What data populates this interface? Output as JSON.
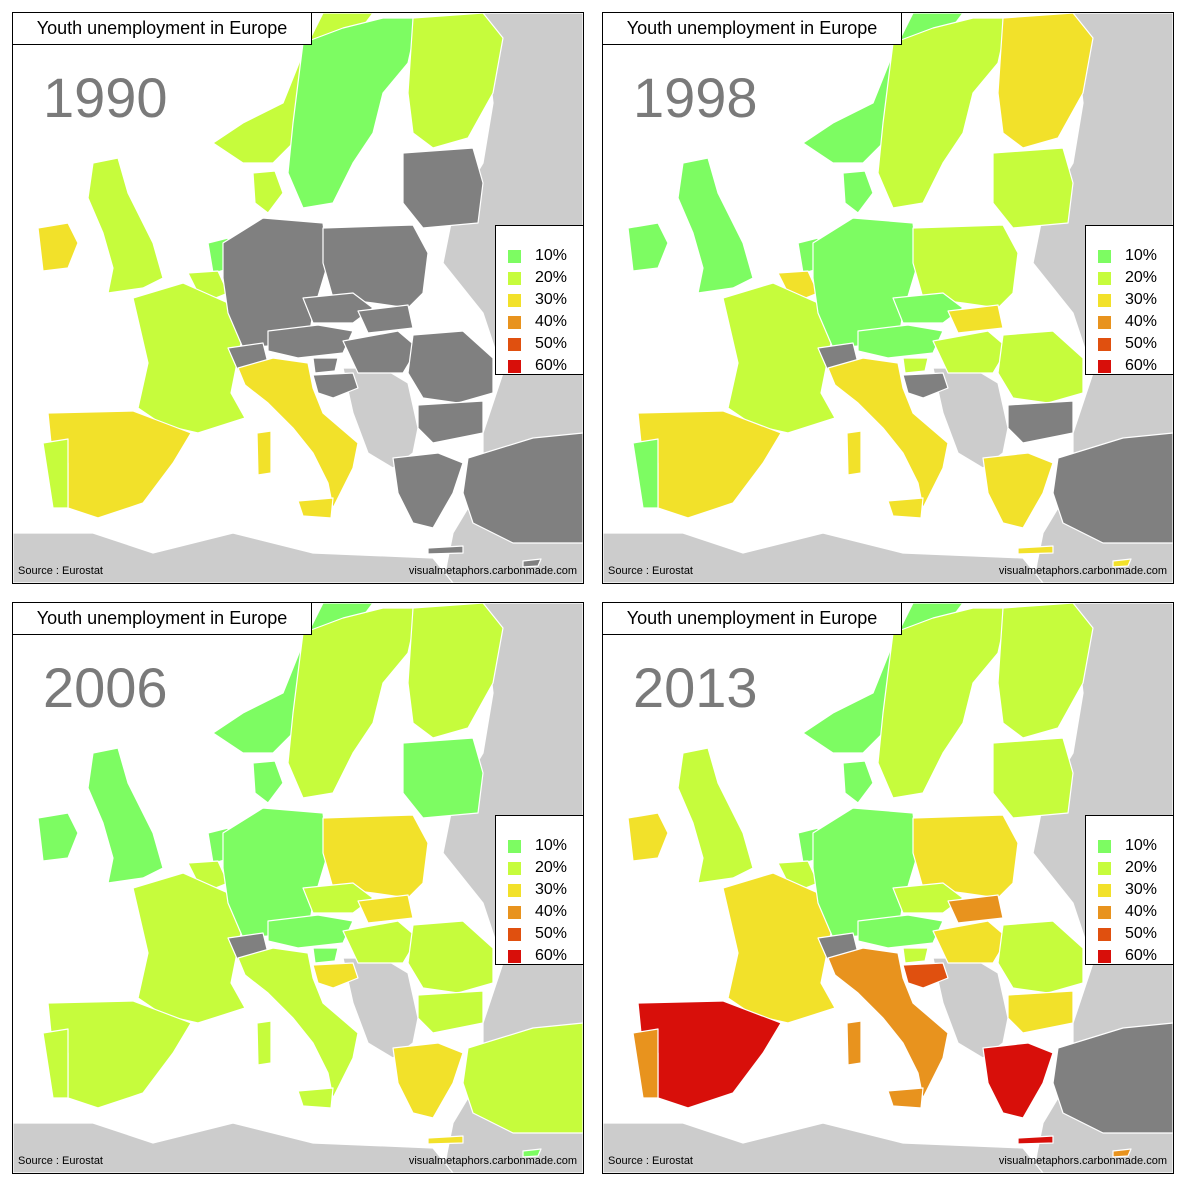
{
  "title": "Youth unemployment in Europe",
  "source": "Source : Eurostat",
  "credit": "visualmetaphors.carbonmade.com",
  "legend": [
    {
      "label": "10%",
      "color": "#7dfc62"
    },
    {
      "label": "20%",
      "color": "#c6fc3c"
    },
    {
      "label": "30%",
      "color": "#f2e12a"
    },
    {
      "label": "40%",
      "color": "#e8931e"
    },
    {
      "label": "50%",
      "color": "#e0500f"
    },
    {
      "label": "60%",
      "color": "#d80f0a"
    }
  ],
  "colors": {
    "nodata": "#808080",
    "non_eu": "#cccccc",
    "sea": "#ffffff",
    "border": "#ffffff"
  },
  "panels": [
    {
      "year": "1990",
      "values": {
        "iceland": "nodata",
        "norway": "20%",
        "sweden": "10%",
        "finland": "20%",
        "ireland": "30%",
        "uk": "20%",
        "denmark": "20%",
        "netherlands": "10%",
        "belgium": "20%",
        "france": "20%",
        "spain": "30%",
        "portugal": "20%",
        "germany": "nodata",
        "poland": "nodata",
        "czech": "nodata",
        "slovakia": "nodata",
        "austria": "nodata",
        "switzerland": "nodata",
        "italy": "30%",
        "hungary": "nodata",
        "slovenia": "nodata",
        "croatia": "nodata",
        "romania": "nodata",
        "bulgaria": "nodata",
        "greece": "nodata",
        "baltics": "nodata",
        "turkey": "nodata",
        "cyprus": "nodata"
      }
    },
    {
      "year": "1998",
      "values": {
        "iceland": "nodata",
        "norway": "10%",
        "sweden": "20%",
        "finland": "30%",
        "ireland": "10%",
        "uk": "10%",
        "denmark": "10%",
        "netherlands": "10%",
        "belgium": "30%",
        "france": "20%",
        "spain": "30%",
        "portugal": "10%",
        "germany": "10%",
        "poland": "20%",
        "czech": "10%",
        "slovakia": "30%",
        "austria": "10%",
        "switzerland": "nodata",
        "italy": "30%",
        "hungary": "20%",
        "slovenia": "20%",
        "croatia": "nodata",
        "romania": "20%",
        "bulgaria": "nodata",
        "greece": "30%",
        "baltics": "20%",
        "turkey": "nodata",
        "cyprus": "30%"
      }
    },
    {
      "year": "2006",
      "values": {
        "iceland": "nodata",
        "norway": "10%",
        "sweden": "20%",
        "finland": "20%",
        "ireland": "10%",
        "uk": "10%",
        "denmark": "10%",
        "netherlands": "10%",
        "belgium": "20%",
        "france": "20%",
        "spain": "20%",
        "portugal": "20%",
        "germany": "10%",
        "poland": "30%",
        "czech": "20%",
        "slovakia": "30%",
        "austria": "10%",
        "switzerland": "nodata",
        "italy": "20%",
        "hungary": "20%",
        "slovenia": "10%",
        "croatia": "30%",
        "romania": "20%",
        "bulgaria": "20%",
        "greece": "30%",
        "baltics": "10%",
        "turkey": "20%",
        "cyprus": "10%"
      }
    },
    {
      "year": "2013",
      "values": {
        "iceland": "nodata",
        "norway": "10%",
        "sweden": "20%",
        "finland": "20%",
        "ireland": "30%",
        "uk": "20%",
        "denmark": "10%",
        "netherlands": "10%",
        "belgium": "20%",
        "france": "30%",
        "spain": "60%",
        "portugal": "40%",
        "germany": "10%",
        "poland": "30%",
        "czech": "20%",
        "slovakia": "40%",
        "austria": "10%",
        "switzerland": "nodata",
        "italy": "40%",
        "hungary": "30%",
        "slovenia": "20%",
        "croatia": "50%",
        "romania": "20%",
        "bulgaria": "30%",
        "greece": "60%",
        "baltics": "20%",
        "turkey": "nodata",
        "cyprus": "40%"
      }
    }
  ]
}
